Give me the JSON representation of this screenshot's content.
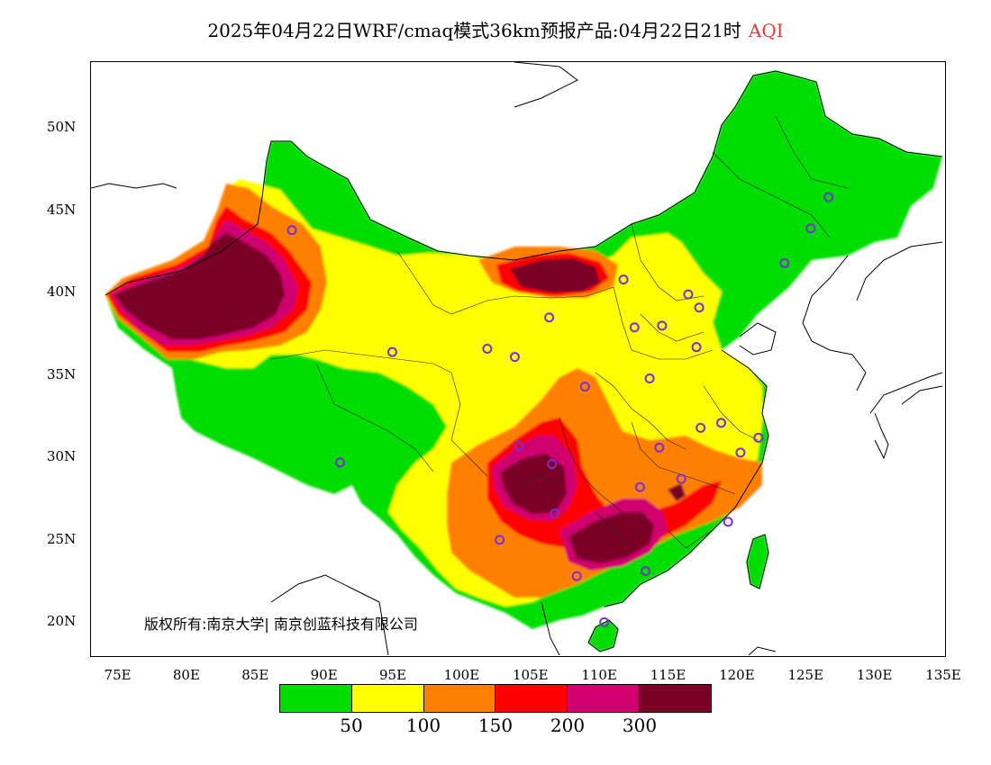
{
  "title": {
    "text": "2025年04月22日WRF/cmaq模式36km预报产品:04月22日21时",
    "variable": "AQI",
    "variable_color": "#e03a3a"
  },
  "copyright": "版权所有:南京大学| 南京创蓝科技有限公司",
  "axes": {
    "lat_ticks": [
      "50N",
      "45N",
      "40N",
      "35N",
      "30N",
      "25N",
      "20N"
    ],
    "lon_ticks": [
      "75E",
      "80E",
      "85E",
      "90E",
      "95E",
      "100E",
      "105E",
      "110E",
      "115E",
      "120E",
      "125E",
      "130E",
      "135E"
    ]
  },
  "legend": {
    "colors": [
      "#00dd00",
      "#ffff00",
      "#ff8000",
      "#ff0000",
      "#d0006e",
      "#7a0025"
    ],
    "labels": [
      "50",
      "100",
      "150",
      "200",
      "300"
    ]
  },
  "map": {
    "domain": {
      "lon": [
        73,
        135
      ],
      "lat": [
        18,
        54
      ]
    },
    "aqi_regions": [
      {
        "level": 5,
        "desc": "Tarim basin",
        "center": [
          82,
          39.5
        ]
      },
      {
        "level": 5,
        "desc": "Inner Mongolia west",
        "center": [
          107,
          41.2
        ]
      },
      {
        "level": 5,
        "desc": "Sichuan basin",
        "center": [
          106,
          28
        ]
      },
      {
        "level": 5,
        "desc": "Guangxi/Guizhou",
        "center": [
          110,
          25
        ]
      }
    ],
    "station_markers": [
      [
        87.6,
        43.8
      ],
      [
        91.1,
        29.7
      ],
      [
        94.9,
        36.4
      ],
      [
        101.8,
        36.6
      ],
      [
        103.8,
        36.1
      ],
      [
        106.3,
        38.5
      ],
      [
        111.7,
        40.8
      ],
      [
        112.5,
        37.9
      ],
      [
        114.5,
        38.0
      ],
      [
        116.4,
        39.9
      ],
      [
        117.2,
        39.1
      ],
      [
        113.6,
        34.8
      ],
      [
        108.9,
        34.3
      ],
      [
        117.0,
        36.7
      ],
      [
        126.6,
        45.8
      ],
      [
        125.3,
        43.9
      ],
      [
        123.4,
        41.8
      ],
      [
        104.1,
        30.7
      ],
      [
        106.5,
        29.6
      ],
      [
        114.3,
        30.6
      ],
      [
        112.9,
        28.2
      ],
      [
        115.9,
        28.7
      ],
      [
        117.3,
        31.8
      ],
      [
        118.8,
        32.1
      ],
      [
        120.2,
        30.3
      ],
      [
        121.5,
        31.2
      ],
      [
        119.3,
        26.1
      ],
      [
        106.7,
        26.6
      ],
      [
        102.7,
        25.0
      ],
      [
        108.3,
        22.8
      ],
      [
        113.3,
        23.1
      ],
      [
        110.3,
        20.0
      ]
    ]
  }
}
